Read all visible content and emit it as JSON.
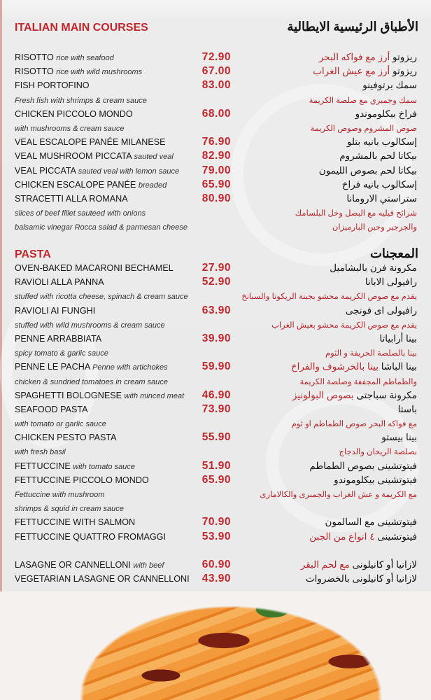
{
  "main_courses": {
    "title_en": "ITALIAN MAIN COURSES",
    "title_ar": "الأطباق الرئيسية الايطالية",
    "lines": [
      {
        "en": "RISOTTO",
        "en_desc": "rice with seafood",
        "price": "72.90",
        "ar": "ريزوتو",
        "ar_desc": "أرز مع فواكه البحر"
      },
      {
        "en": "RISOTTO",
        "en_desc": "rice with wild mushrooms",
        "price": "67.00",
        "ar": "ريزوتو",
        "ar_desc": "أرز مع عيش الغراب"
      },
      {
        "en": "FISH PORTOFINO",
        "price": "83.00",
        "ar": "سمك برتوفينو"
      },
      {
        "desc_en": "Fresh fish with shrimps & cream sauce",
        "desc_ar": "سمك وجمبري مع صلصة الكريمة"
      },
      {
        "en": "CHICKEN PICCOLO MONDO",
        "price": "68.00",
        "ar": "فراخ بيكلوموندو"
      },
      {
        "desc_en": "with mushrooms & cream sauce",
        "desc_ar": "صوص المشروم وصوص الكريمة"
      },
      {
        "en": "VEAL ESCALOPE PANÉE MILANESE",
        "price": "76.90",
        "ar": "إسكالوب بانيه بتلو"
      },
      {
        "en": "VEAL MUSHROOM PICCATA",
        "en_desc": "sauted veal",
        "price": "82.90",
        "ar": "بيكاتا لحم بالمشروم"
      },
      {
        "en": "VEAL PICCATA",
        "en_desc": "sauted veal with lemon sauce",
        "price": "79.00",
        "ar": "بيكاتا لحم بصوص الليمون"
      },
      {
        "en": "CHICKEN ESCALOPE PANÉE",
        "en_desc": "breaded",
        "price": "65.90",
        "ar": "إسكالوب بانيه فراخ"
      },
      {
        "en": "STRACETTI ALLA ROMANA",
        "price": "80.90",
        "ar": "ستراستي الارومانا"
      },
      {
        "desc_en": "slices of beef fillet sauteed with onions",
        "desc_ar": "شرائح فيليه مع البصل وخل البلسامك"
      },
      {
        "desc_en": "balsamic vinegar Rocca salad & parmesan cheese",
        "desc_ar": "والجرجير وجبن البارميزان"
      }
    ]
  },
  "pasta": {
    "title_en": "PASTA",
    "title_ar": "المعجنات",
    "lines": [
      {
        "en": "OVEN-BAKED MACARONI BECHAMEL",
        "price": "27.90",
        "ar": "مكرونة فرن بالبشاميل"
      },
      {
        "en": "RAVIOLI ALLA PANNA",
        "price": "52.90",
        "ar": "رافيولى الابانا"
      },
      {
        "desc_en": "stuffed with ricotta cheese, spinach & cream sauce",
        "desc_ar": "يقدم مع صوص الكريمة محشو بجبنة الريكوتا والسبانخ"
      },
      {
        "en": "RAVIOLI AI FUNGHI",
        "price": "63.90",
        "ar": "رافيولى اى فونجى"
      },
      {
        "desc_en": "stuffed with wild mushrooms & cream sauce",
        "desc_ar": "يقدم مع صوص الكريمة محشو بعيش الغراب"
      },
      {
        "en": "PENNE ARRABBIATA",
        "price": "39.90",
        "ar": "بينا أرابياتا"
      },
      {
        "desc_en": "spicy tomato & garlic sauce",
        "desc_ar": "بينا بالصلصة الحريفة و الثوم"
      },
      {
        "en": "PENNE LE PACHA",
        "en_desc": "Penne with artichokes",
        "price": "59.90",
        "ar": "بينا الباشا",
        "ar_desc": "بينا بالخرشوف والفراخ"
      },
      {
        "desc_en": "chicken & sundried tomatoes in cream sauce",
        "desc_ar": "والطماطم المجففة وصلصة الكريمة"
      },
      {
        "en": "SPAGHETTI BOLOGNESE",
        "en_desc": "with minced meat",
        "price": "46.90",
        "ar": "مكرونة سباجتى",
        "ar_desc": "بصوص البولونيز"
      },
      {
        "en": "SEAFOOD PASTA",
        "price": "73.90",
        "ar": "باستا"
      },
      {
        "desc_en": "with tomato or garlic sauce",
        "desc_ar": "مع فواكه البحر  صوص الطماطم او ثوم"
      },
      {
        "en": "CHICKEN PESTO PASTA",
        "price": "55.90",
        "ar": "بينا بيستو"
      },
      {
        "desc_en": "with fresh basil",
        "desc_ar": "بصلصة الريحان والدجاج"
      },
      {
        "en": "FETTUCCINE",
        "en_desc": "with tomato sauce",
        "price": "51.90",
        "ar": "فيتوتشينى بصوص الطماطم"
      },
      {
        "en": "FETTUCCINE PICCOLO MONDO",
        "price": "65.90",
        "ar": "فيتوتشينى بيكلوموندو"
      },
      {
        "desc_en": "Fettuccine with mushroom",
        "desc_ar": "مع الكريمة و عش الغراب والجمبرى والكالامارى"
      },
      {
        "desc_en": " shrimps & squid in cream sauce"
      },
      {
        "en": "FETTUCCINE WITH SALMON",
        "price": "70.90",
        "ar": "فيتوتشينى مع السالمون"
      },
      {
        "en": "FETTUCCINE QUATTRO FROMAGGI",
        "price": "53.90",
        "ar": "فيتوتشينى",
        "ar_desc": "٤ انواع من الجبن"
      }
    ]
  },
  "lasagne": {
    "lines": [
      {
        "en": "LASAGNE OR CANNELLONI",
        "en_desc": "with beef",
        "price": "60.90",
        "ar": "لازانيا  أو كانيلونى",
        "ar_desc": "مع لحم البقر"
      },
      {
        "en": "VEGETARIAN LASAGNE OR CANNELLONI",
        "price": "43.90",
        "ar": "لازانيا أو كانيلونى بالخضروات"
      }
    ]
  },
  "colors": {
    "accent": "#c0272d",
    "background": "#ebebeb",
    "text": "#151515"
  }
}
